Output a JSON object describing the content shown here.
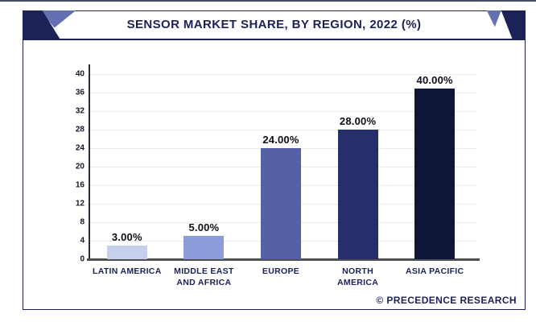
{
  "header": {
    "title": "SENSOR MARKET SHARE, BY REGION, 2022 (%)"
  },
  "footer": {
    "attribution": "© PRECEDENCE RESEARCH"
  },
  "colors": {
    "navy": "#1b2157",
    "banner_dark": "#1c2256",
    "banner_light": "#6470b2",
    "gridline": "#ebebeb",
    "x_axis": "#4f4f4f"
  },
  "chart_data": {
    "type": "bar",
    "title": "SENSOR MARKET SHARE, BY REGION, 2022 (%)",
    "categories": [
      "LATIN AMERICA",
      "MIDDLE EAST AND AFRICA",
      "EUROPE",
      "NORTH AMERICA",
      "ASIA PACIFIC"
    ],
    "values": [
      3,
      5,
      24,
      28,
      40
    ],
    "value_labels": [
      "3.00%",
      "5.00%",
      "24.00%",
      "28.00%",
      "40.00%"
    ],
    "bar_colors": [
      "#c6cfeb",
      "#8c9cd8",
      "#5560a7",
      "#262e6b",
      "#10153a"
    ],
    "y_ticks": [
      0,
      4,
      8,
      12,
      16,
      20,
      24,
      28,
      32,
      36,
      40
    ],
    "ylim": [
      0,
      40
    ],
    "xlabel": "",
    "ylabel": "",
    "grid": true,
    "legend": "none"
  }
}
